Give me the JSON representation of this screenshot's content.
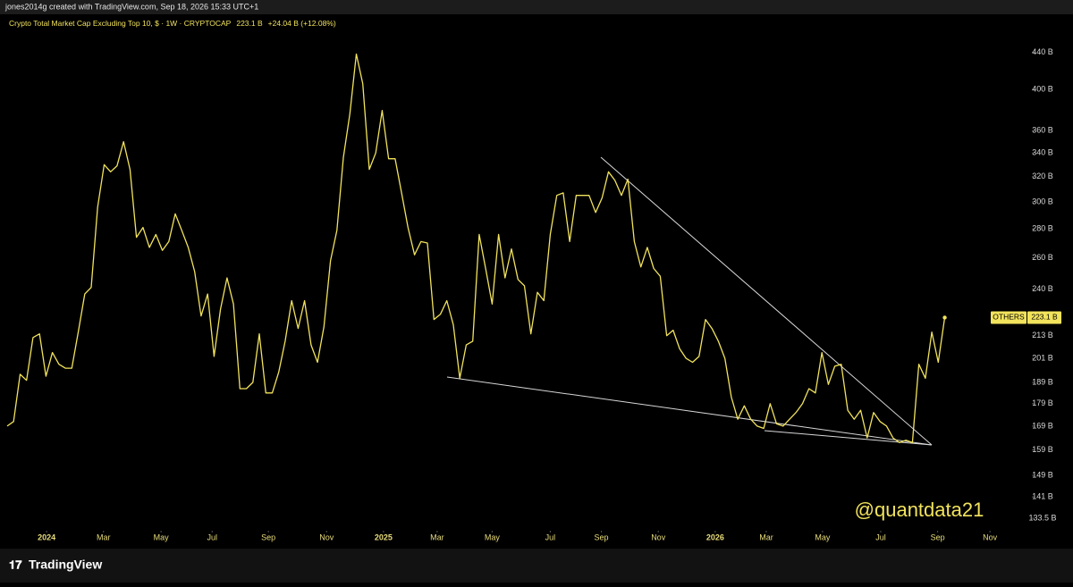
{
  "header": "jones2014g created with TradingView.com, Sep 18, 2026 15:33 UTC+1",
  "footer": "TradingView",
  "watermark": "@quantdata21",
  "chart_data": {
    "type": "line",
    "title": "Crypto Total Market Cap Excluding Top 10, $ · 1W · CRYPTOCAP",
    "last_label": "223.1 B",
    "change_label": "+24.04 B (+12.08%)",
    "log_scale": true,
    "series": [
      {
        "name": "OTHERS",
        "color": "#f2e35c",
        "last_value_label": "223.1 B",
        "values": [
          169,
          171,
          193,
          190,
          212,
          214,
          192,
          204,
          198,
          196,
          196,
          215,
          237,
          241,
          296,
          330,
          324,
          329,
          350,
          326,
          274,
          281,
          267,
          276,
          265,
          271,
          291,
          279,
          267,
          251,
          224,
          237,
          202,
          228,
          247,
          231,
          186,
          186,
          189,
          214,
          184,
          184,
          194,
          210,
          233,
          217,
          233,
          208,
          199,
          218,
          258,
          279,
          336,
          376,
          438,
          406,
          326,
          340,
          379,
          335,
          335,
          307,
          281,
          262,
          271,
          270,
          222,
          225,
          233,
          219,
          191,
          208,
          210,
          276,
          253,
          231,
          276,
          247,
          266,
          246,
          242,
          214,
          238,
          233,
          276,
          305,
          307,
          271,
          305,
          305,
          305,
          292,
          303,
          324,
          317,
          305,
          318,
          271,
          254,
          267,
          253,
          248,
          213,
          216,
          206,
          201,
          199,
          202,
          222,
          217,
          210,
          201,
          182,
          172,
          178,
          172,
          169,
          168,
          179,
          170,
          169,
          172,
          175,
          179,
          186,
          184,
          204,
          188,
          197,
          198,
          176,
          172,
          176,
          164,
          175,
          171,
          169,
          164,
          162,
          163,
          162,
          198,
          191,
          215,
          199,
          223.1
        ]
      }
    ],
    "xlim": [
      0,
      158.2
    ],
    "xticks": [
      {
        "value": 6.1,
        "label": "2024"
      },
      {
        "value": 14.9,
        "label": "Mar"
      },
      {
        "value": 23.8,
        "label": "May"
      },
      {
        "value": 31.7,
        "label": "Jul"
      },
      {
        "value": 40.4,
        "label": "Sep"
      },
      {
        "value": 49.4,
        "label": "Nov"
      },
      {
        "value": 58.2,
        "label": "2025"
      },
      {
        "value": 66.5,
        "label": "Mar"
      },
      {
        "value": 75,
        "label": "May"
      },
      {
        "value": 84,
        "label": "Jul"
      },
      {
        "value": 91.9,
        "label": "Sep"
      },
      {
        "value": 100.7,
        "label": "Nov"
      },
      {
        "value": 109.5,
        "label": "2026"
      },
      {
        "value": 117.4,
        "label": "Mar"
      },
      {
        "value": 126.1,
        "label": "May"
      },
      {
        "value": 135.1,
        "label": "Jul"
      },
      {
        "value": 143.9,
        "label": "Sep"
      },
      {
        "value": 152,
        "label": "Nov"
      }
    ],
    "ylim": [
      130.5,
      469.6
    ],
    "yticks": [
      {
        "value": 440,
        "label": "440 B"
      },
      {
        "value": 400,
        "label": "400 B"
      },
      {
        "value": 360,
        "label": "360 B"
      },
      {
        "value": 340,
        "label": "340 B"
      },
      {
        "value": 320,
        "label": "320 B"
      },
      {
        "value": 300,
        "label": "300 B"
      },
      {
        "value": 280,
        "label": "280 B"
      },
      {
        "value": 260,
        "label": "260 B"
      },
      {
        "value": 240,
        "label": "240 B"
      },
      {
        "value": 213,
        "label": "213 B"
      },
      {
        "value": 201,
        "label": "201 B"
      },
      {
        "value": 189,
        "label": "189 B"
      },
      {
        "value": 179,
        "label": "179 B"
      },
      {
        "value": 169,
        "label": "169 B"
      },
      {
        "value": 159,
        "label": "159 B"
      },
      {
        "value": 149,
        "label": "149 B"
      },
      {
        "value": 141,
        "label": "141 B"
      },
      {
        "value": 133.5,
        "label": "133.5 B"
      }
    ]
  }
}
